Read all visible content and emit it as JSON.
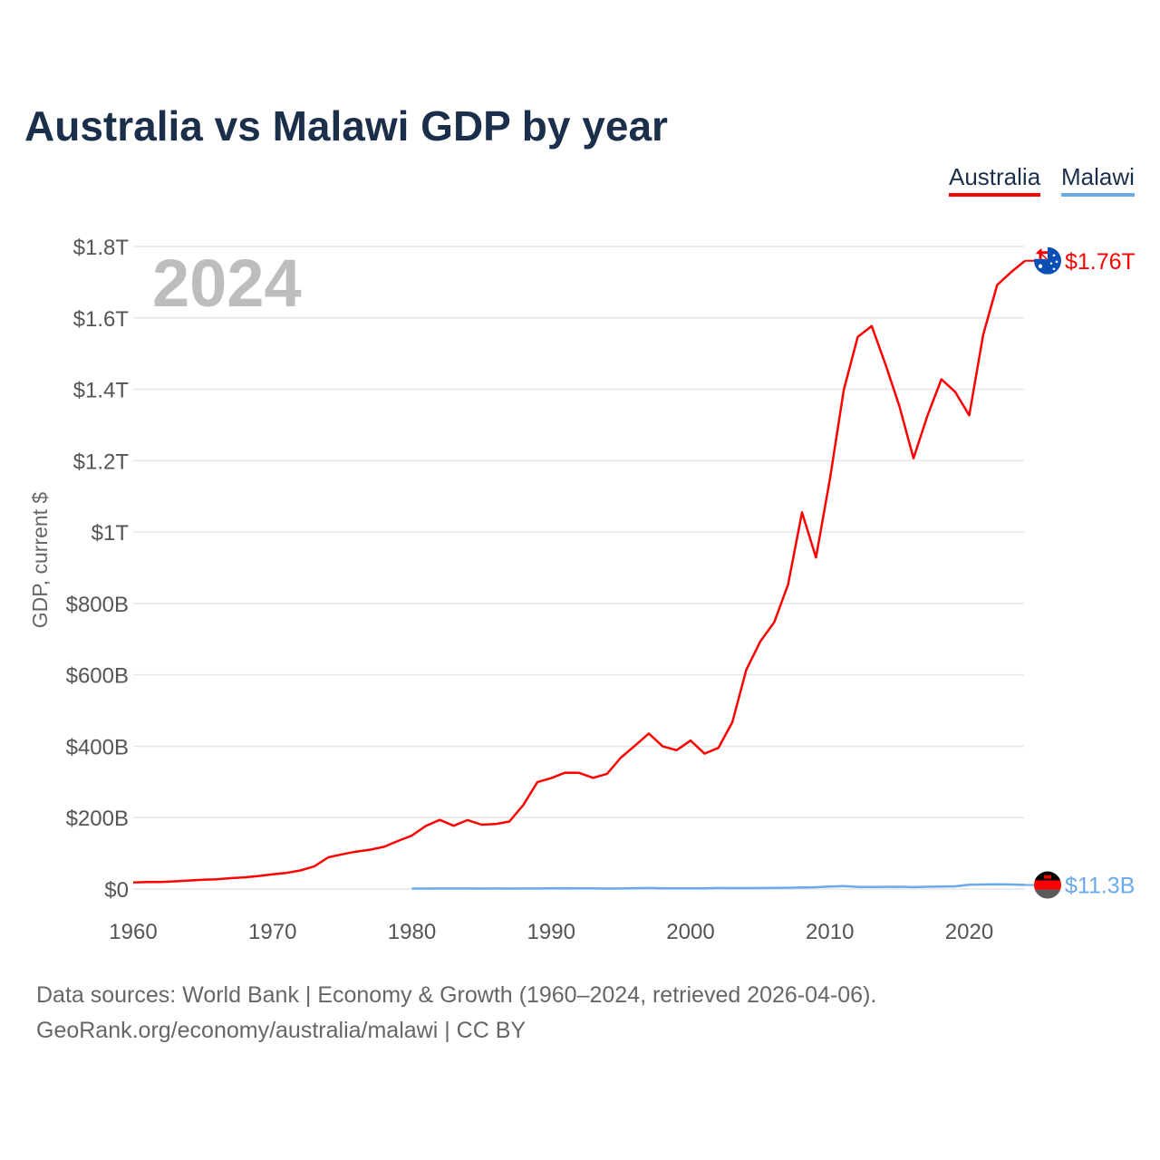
{
  "chart_data": {
    "type": "line",
    "title": "Australia vs Malawi GDP by year",
    "ylabel": "GDP, current $",
    "xlabel": "",
    "year_watermark": "2024",
    "xlim": [
      1960,
      2024
    ],
    "ylim": [
      0,
      1800
    ],
    "y_unit": "billion US$",
    "grid": true,
    "legend_placement": "top-right",
    "x_ticks": [
      1960,
      1970,
      1980,
      1990,
      2000,
      2010,
      2020
    ],
    "x_tick_labels": [
      "1960",
      "1970",
      "1980",
      "1990",
      "2000",
      "2010",
      "2020"
    ],
    "y_ticks": [
      0,
      200,
      400,
      600,
      800,
      1000,
      1200,
      1400,
      1600,
      1800
    ],
    "y_tick_labels": [
      "$0",
      "$200B",
      "$400B",
      "$600B",
      "$800B",
      "$1T",
      "$1.2T",
      "$1.4T",
      "$1.6T",
      "$1.8T"
    ],
    "series": [
      {
        "name": "Australia",
        "color": "#ff0000",
        "end_label": "$1.76T",
        "flag": "australia-flag",
        "start_year": 1960,
        "values": [
          18.6,
          19.7,
          19.9,
          21.5,
          23.8,
          25.9,
          27.3,
          30.4,
          32.7,
          36.6,
          41.3,
          45.2,
          52.0,
          63.7,
          88.8,
          97.2,
          104.9,
          110.2,
          118.3,
          134.6,
          149.8,
          176.6,
          193.8,
          177.3,
          193.2,
          180.2,
          182.0,
          189.1,
          235.7,
          299.3,
          310.8,
          325.9,
          325.4,
          311.6,
          322.8,
          368.0,
          401.3,
          435.6,
          399.6,
          388.9,
          415.8,
          379.4,
          395.6,
          467.5,
          614.2,
          693.3,
          747.2,
          853.1,
          1055.1,
          928.8,
          1148.8,
          1398.7,
          1547.0,
          1577.1,
          1468.3,
          1351.3,
          1206.6,
          1326.1,
          1428.0,
          1392.2,
          1326.9,
          1553.1,
          1692.0,
          1728.0,
          1760.0
        ]
      },
      {
        "name": "Malawi",
        "color": "#6aa9ec",
        "end_label": "$11.3B",
        "flag": "malawi-flag",
        "start_year": 1980,
        "values": [
          1.24,
          1.38,
          1.45,
          1.51,
          1.48,
          1.32,
          1.42,
          1.19,
          1.41,
          1.61,
          1.88,
          2.2,
          1.8,
          2.08,
          1.18,
          1.43,
          2.33,
          2.68,
          1.75,
          1.78,
          1.74,
          1.72,
          2.67,
          2.43,
          2.63,
          2.75,
          3.12,
          3.65,
          4.28,
          5.03,
          6.96,
          8.0,
          6.03,
          5.52,
          6.05,
          6.37,
          5.43,
          6.3,
          7.15,
          7.65,
          12.18,
          12.63,
          13.16,
          12.7,
          11.3
        ]
      }
    ]
  },
  "footer": {
    "line1": "Data sources: World Bank | Economy & Growth (1960–2024, retrieved 2026-04-06).",
    "line2": "GeoRank.org/economy/australia/malawi | CC BY"
  }
}
